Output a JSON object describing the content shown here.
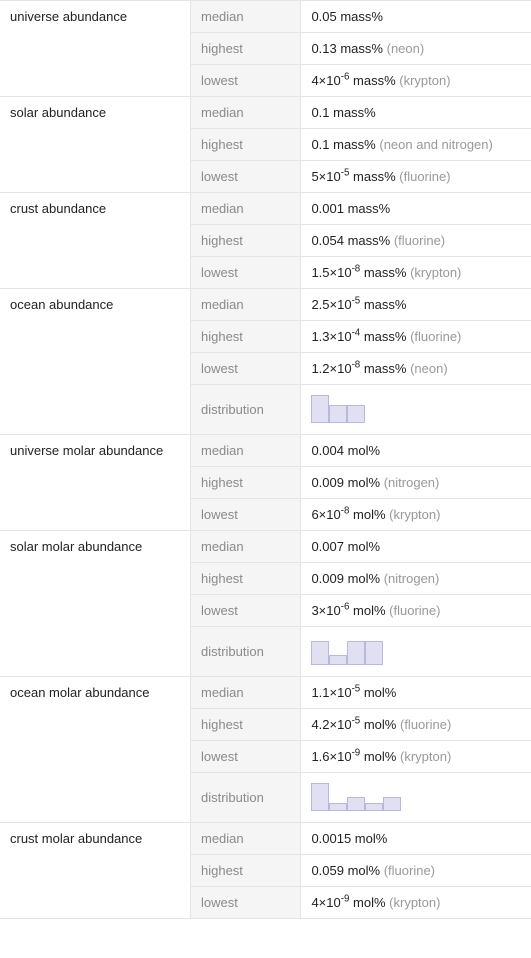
{
  "colors": {
    "group_text": "#222222",
    "label_text": "#8a8a8a",
    "label_bg": "#f5f5f5",
    "value_text": "#222222",
    "qual_text": "#999999",
    "border": "#e4e4e4",
    "bar_fill": "#e0e0f2",
    "bar_border": "#b8b8dc"
  },
  "labels": {
    "median": "median",
    "highest": "highest",
    "lowest": "lowest",
    "distribution": "distribution"
  },
  "sections": {
    "universe_abundance": {
      "title": "universe abundance",
      "median": "0.05 mass%",
      "highest": "0.13 mass%",
      "highest_qual": "(neon)",
      "lowest_pre": "4×10",
      "lowest_exp": "-6",
      "lowest_post": " mass%",
      "lowest_qual": "(krypton)"
    },
    "solar_abundance": {
      "title": "solar abundance",
      "median": "0.1 mass%",
      "highest": "0.1 mass%",
      "highest_qual": "(neon and nitrogen)",
      "lowest_pre": "5×10",
      "lowest_exp": "-5",
      "lowest_post": " mass%",
      "lowest_qual": "(fluorine)"
    },
    "crust_abundance": {
      "title": "crust abundance",
      "median": "0.001 mass%",
      "highest": "0.054 mass%",
      "highest_qual": "(fluorine)",
      "lowest_pre": "1.5×10",
      "lowest_exp": "-8",
      "lowest_post": " mass%",
      "lowest_qual": "(krypton)"
    },
    "ocean_abundance": {
      "title": "ocean abundance",
      "median_pre": "2.5×10",
      "median_exp": "-5",
      "median_post": " mass%",
      "highest_pre": "1.3×10",
      "highest_exp": "-4",
      "highest_post": " mass%",
      "highest_qual": "(fluorine)",
      "lowest_pre": "1.2×10",
      "lowest_exp": "-8",
      "lowest_post": " mass%",
      "lowest_qual": "(neon)",
      "distribution": {
        "bars": [
          28,
          18,
          18
        ],
        "max_height": 28
      }
    },
    "universe_molar": {
      "title": "universe molar abundance",
      "median": "0.004 mol%",
      "highest": "0.009 mol%",
      "highest_qual": "(nitrogen)",
      "lowest_pre": "6×10",
      "lowest_exp": "-8",
      "lowest_post": " mol%",
      "lowest_qual": "(krypton)"
    },
    "solar_molar": {
      "title": "solar molar abundance",
      "median": "0.007 mol%",
      "highest": "0.009 mol%",
      "highest_qual": "(nitrogen)",
      "lowest_pre": "3×10",
      "lowest_exp": "-6",
      "lowest_post": " mol%",
      "lowest_qual": "(fluorine)",
      "distribution": {
        "bars": [
          24,
          10,
          24,
          24
        ],
        "max_height": 24
      }
    },
    "ocean_molar": {
      "title": "ocean molar abundance",
      "median_pre": "1.1×10",
      "median_exp": "-5",
      "median_post": " mol%",
      "highest_pre": "4.2×10",
      "highest_exp": "-5",
      "highest_post": " mol%",
      "highest_qual": "(fluorine)",
      "lowest_pre": "1.6×10",
      "lowest_exp": "-9",
      "lowest_post": " mol%",
      "lowest_qual": "(krypton)",
      "distribution": {
        "bars": [
          28,
          8,
          14,
          8,
          14
        ],
        "max_height": 28
      }
    },
    "crust_molar": {
      "title": "crust molar abundance",
      "median": "0.0015 mol%",
      "highest": "0.059 mol%",
      "highest_qual": "(fluorine)",
      "lowest_pre": "4×10",
      "lowest_exp": "-9",
      "lowest_post": " mol%",
      "lowest_qual": "(krypton)"
    }
  }
}
